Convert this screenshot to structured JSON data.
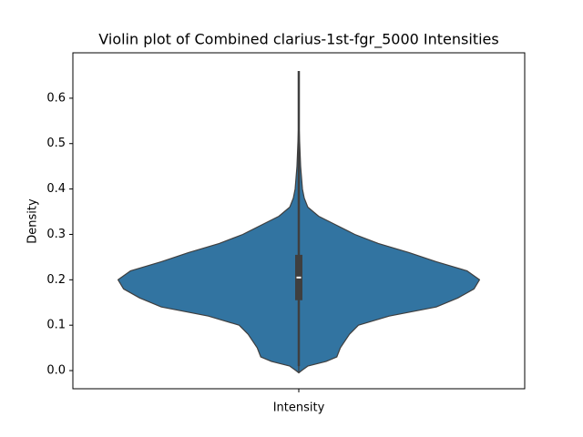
{
  "chart_data": {
    "type": "violin",
    "title": "Violin plot of Combined clarius-1st-fgr_5000 Intensities",
    "ylabel": "Density",
    "categories": [
      "Intensity"
    ],
    "color": "#3274a1",
    "edge_color": "#3f3f3f",
    "ylim": [
      -0.04,
      0.7
    ],
    "yticks": [
      {
        "value": 0,
        "label": "0.0"
      },
      0.1,
      0.2,
      0.3,
      0.4,
      0.5,
      0.6
    ],
    "violin": {
      "y": [
        -0.005,
        0.0,
        0.01,
        0.02,
        0.03,
        0.05,
        0.08,
        0.1,
        0.12,
        0.14,
        0.16,
        0.18,
        0.2,
        0.22,
        0.24,
        0.26,
        0.28,
        0.3,
        0.32,
        0.34,
        0.36,
        0.38,
        0.4,
        0.45,
        0.5,
        0.55
      ],
      "density": [
        0,
        0.015,
        0.05,
        0.15,
        0.21,
        0.23,
        0.28,
        0.33,
        0.5,
        0.76,
        0.88,
        0.97,
        1.0,
        0.93,
        0.76,
        0.61,
        0.44,
        0.31,
        0.21,
        0.11,
        0.05,
        0.03,
        0.02,
        0.01,
        0.005,
        0
      ]
    },
    "box": {
      "whisker_low": 0.01,
      "q1": 0.155,
      "median": 0.205,
      "q3": 0.255,
      "whisker_high": 0.66
    }
  }
}
